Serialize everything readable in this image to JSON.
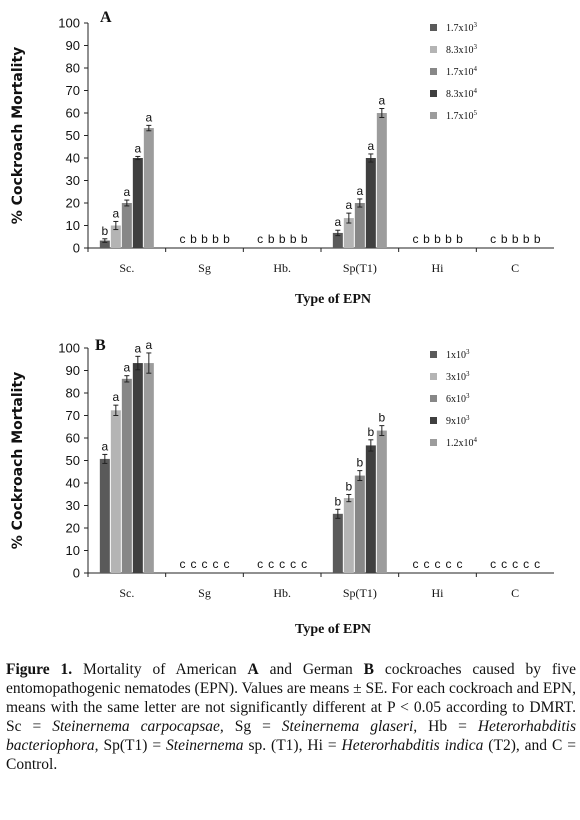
{
  "chart_data": [
    {
      "type": "bar",
      "panel_label": "A",
      "ylabel": "% Cockroach Mortality",
      "xlabel": "Type of EPN",
      "ylim": [
        0,
        100
      ],
      "yticks": [
        0,
        10,
        20,
        30,
        40,
        50,
        60,
        70,
        80,
        90,
        100
      ],
      "categories": [
        "Sc.",
        "Sg",
        "Hb.",
        "Sp(T1)",
        "Hi",
        "C"
      ],
      "series": [
        {
          "name": "1.7x10",
          "exp": "3",
          "color": "#5a5a5a",
          "values": [
            3.3,
            0,
            0,
            6.7,
            0,
            0
          ],
          "errors": [
            0.8,
            0,
            0,
            1.2,
            0,
            0
          ],
          "letters": [
            "b",
            "c",
            "c",
            "a",
            "c",
            "c"
          ]
        },
        {
          "name": "8.3x10",
          "exp": "3",
          "color": "#b4b4b4",
          "values": [
            10,
            0,
            0,
            13.3,
            0,
            0
          ],
          "errors": [
            1.8,
            0,
            0,
            2.2,
            0,
            0
          ],
          "letters": [
            "a",
            "b",
            "b",
            "a",
            "b",
            "b"
          ]
        },
        {
          "name": "1.7x10",
          "exp": "4",
          "color": "#878787",
          "values": [
            20,
            0,
            0,
            20,
            0,
            0
          ],
          "errors": [
            1.3,
            0,
            0,
            1.8,
            0,
            0
          ],
          "letters": [
            "a",
            "b",
            "b",
            "a",
            "b",
            "b"
          ]
        },
        {
          "name": "8.3x10",
          "exp": "4",
          "color": "#3f3f3f",
          "values": [
            40,
            0,
            0,
            40,
            0,
            0
          ],
          "errors": [
            0.7,
            0,
            0,
            1.8,
            0,
            0
          ],
          "letters": [
            "a",
            "b",
            "b",
            "a",
            "b",
            "b"
          ]
        },
        {
          "name": "1.7x10",
          "exp": "5",
          "color": "#9c9c9c",
          "values": [
            53.3,
            0,
            0,
            60,
            0,
            0
          ],
          "errors": [
            1.2,
            0,
            0,
            2.0,
            0,
            0
          ],
          "letters": [
            "a",
            "b",
            "b",
            "a",
            "b",
            "b"
          ]
        }
      ],
      "grid": false,
      "legend_position": "top-right"
    },
    {
      "type": "bar",
      "panel_label": "B",
      "ylabel": "% Cockroach Mortality",
      "xlabel": "Type of EPN",
      "ylim": [
        0,
        100
      ],
      "yticks": [
        0,
        10,
        20,
        30,
        40,
        50,
        60,
        70,
        80,
        90,
        100
      ],
      "categories": [
        "Sc.",
        "Sg",
        "Hb.",
        "Sp(T1)",
        "Hi",
        "C"
      ],
      "series": [
        {
          "name": "1x10",
          "exp": "3",
          "color": "#5a5a5a",
          "values": [
            50.7,
            0,
            0,
            26.3,
            0,
            0
          ],
          "errors": [
            2.0,
            0,
            0,
            2.0,
            0,
            0
          ],
          "letters": [
            "a",
            "c",
            "c",
            "b",
            "c",
            "c"
          ]
        },
        {
          "name": "3x10",
          "exp": "3",
          "color": "#b4b4b4",
          "values": [
            72.3,
            0,
            0,
            33.3,
            0,
            0
          ],
          "errors": [
            2.3,
            0,
            0,
            1.6,
            0,
            0
          ],
          "letters": [
            "a",
            "c",
            "c",
            "b",
            "c",
            "c"
          ]
        },
        {
          "name": "6x10",
          "exp": "3",
          "color": "#878787",
          "values": [
            86.3,
            0,
            0,
            43.3,
            0,
            0
          ],
          "errors": [
            1.4,
            0,
            0,
            2.2,
            0,
            0
          ],
          "letters": [
            "a",
            "c",
            "c",
            "b",
            "c",
            "c"
          ]
        },
        {
          "name": "9x10",
          "exp": "3",
          "color": "#3f3f3f",
          "values": [
            93.3,
            0,
            0,
            56.7,
            0,
            0
          ],
          "errors": [
            3.0,
            0,
            0,
            2.5,
            0,
            0
          ],
          "letters": [
            "a",
            "c",
            "c",
            "b",
            "c",
            "c"
          ]
        },
        {
          "name": "1.2x10",
          "exp": "4",
          "color": "#9c9c9c",
          "values": [
            93.3,
            0,
            0,
            63.3,
            0,
            0
          ],
          "errors": [
            4.5,
            0,
            0,
            2.2,
            0,
            0
          ],
          "letters": [
            "a",
            "c",
            "c",
            "b",
            "c",
            "c"
          ]
        }
      ],
      "grid": false,
      "legend_position": "top-right"
    }
  ],
  "caption": {
    "figure_label": "Figure 1.",
    "t1": " Mortality of American ",
    "A": "A",
    "t2": " and German ",
    "B": "B",
    "t3": " cockroaches caused by five entomopathogenic nematodes (EPN). Values are means ± SE. For each cockroach and EPN, means with the same letter are not significantly different at P < 0.05 according to DMRT. Sc = ",
    "sc_name": "Steinernema carpocapsae,",
    "t4": " Sg = ",
    "sg_name": "Steinernema glaseri,",
    "t5": " Hb = ",
    "hb_name": "Heterorhabditis bacteriophora,",
    "t6": " Sp(T1) = ",
    "sp_name": "Steinernema",
    "t7": " sp. (T1), Hi = ",
    "hi_name": "Heterorhabditis indica",
    "t8": " (T2), and C = Control."
  }
}
